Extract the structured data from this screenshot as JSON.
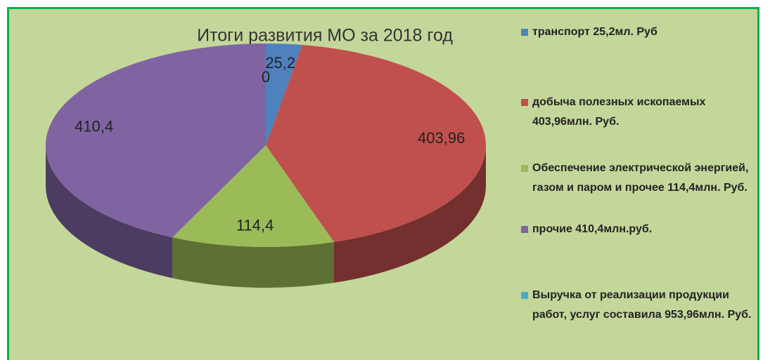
{
  "chart_data": {
    "type": "pie3d",
    "title": "Итоги развития МО за 2018 год",
    "categories": [
      "транспорт 25,2мл. Руб",
      "добыча полезных ископаемых 403,96млн. Руб.",
      "Обеспечение электрической энергией, газом и паром  и прочее 114,4млн. Руб.",
      "прочие 410,4млн.руб.",
      "Выручка от реализации продукции работ, услуг составила 953,96млн. Руб."
    ],
    "values": [
      25.2,
      403.96,
      114.4,
      410.4,
      0
    ],
    "value_labels": [
      "25,2",
      "403,96",
      "114,4",
      "410,4",
      "0"
    ],
    "colors": [
      "#4f81bd",
      "#c0504d",
      "#9bbb59",
      "#8064a2",
      "#4bacc6"
    ],
    "legend": "right"
  }
}
